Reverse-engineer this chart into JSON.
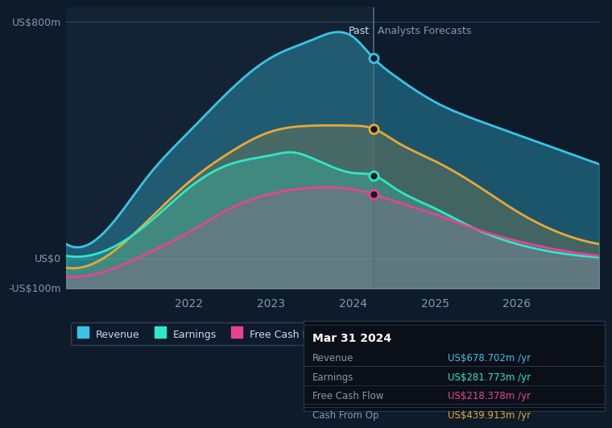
{
  "bg_color": "#0d1b2a",
  "plot_bg": "#0d1b2a",
  "title": "Mar 31 2024",
  "tooltip_title": "Mar 31 2024",
  "tooltip_items": [
    {
      "label": "Revenue",
      "value": "US$678.702m /yr",
      "color": "#38c4e8"
    },
    {
      "label": "Earnings",
      "value": "US$281.773m /yr",
      "color": "#2de8c8"
    },
    {
      "label": "Free Cash Flow",
      "value": "US$218.378m /yr",
      "color": "#e84393"
    },
    {
      "label": "Cash From Op",
      "value": "US$439.913m /yr",
      "color": "#e8a838"
    }
  ],
  "ylabel_800": "US$800m",
  "ylabel_0": "US$0",
  "ylabel_neg100": "-US$100m",
  "past_label": "Past",
  "forecast_label": "Analysts Forecasts",
  "divider_x": 2024.25,
  "legend_items": [
    {
      "label": "Revenue",
      "color": "#38c4e8"
    },
    {
      "label": "Earnings",
      "color": "#2de8c8"
    },
    {
      "label": "Free Cash Flow",
      "color": "#e84393"
    },
    {
      "label": "Cash From Op",
      "color": "#e8a838"
    }
  ],
  "x_ticks": [
    2022,
    2023,
    2024,
    2025,
    2026
  ],
  "ylim": [
    -100,
    850
  ],
  "revenue": {
    "color": "#38c4e8",
    "fill_alpha": 0.35,
    "x": [
      2020.5,
      2021.0,
      2021.5,
      2022.0,
      2022.5,
      2023.0,
      2023.5,
      2024.0,
      2024.25,
      2024.5,
      2025.0,
      2025.5,
      2026.0,
      2026.5,
      2027.0
    ],
    "y": [
      50,
      100,
      280,
      430,
      570,
      680,
      740,
      750,
      678,
      620,
      530,
      470,
      420,
      370,
      320
    ]
  },
  "earnings": {
    "color": "#2de8c8",
    "fill_alpha": 0.25,
    "x": [
      2020.5,
      2021.0,
      2021.5,
      2022.0,
      2022.5,
      2023.0,
      2023.25,
      2023.5,
      2023.75,
      2024.0,
      2024.25,
      2024.5,
      2025.0,
      2025.5,
      2026.0,
      2026.5,
      2027.0
    ],
    "y": [
      10,
      30,
      120,
      240,
      320,
      350,
      360,
      340,
      310,
      290,
      282,
      240,
      170,
      100,
      50,
      20,
      5
    ]
  },
  "free_cash_flow": {
    "color": "#e84393",
    "fill_alpha": 0.2,
    "x": [
      2020.5,
      2021.0,
      2021.5,
      2022.0,
      2022.5,
      2023.0,
      2023.5,
      2024.0,
      2024.25,
      2024.5,
      2025.0,
      2025.5,
      2026.0,
      2026.5,
      2027.0
    ],
    "y": [
      -60,
      -40,
      20,
      90,
      170,
      220,
      240,
      235,
      218,
      195,
      150,
      100,
      60,
      30,
      10
    ]
  },
  "cash_from_op": {
    "color": "#e8a838",
    "fill_alpha": 0.2,
    "x": [
      2020.5,
      2021.0,
      2021.5,
      2022.0,
      2022.5,
      2023.0,
      2023.5,
      2024.0,
      2024.25,
      2024.5,
      2025.0,
      2025.5,
      2026.0,
      2026.5,
      2027.0
    ],
    "y": [
      -30,
      10,
      130,
      260,
      360,
      430,
      450,
      450,
      440,
      400,
      330,
      250,
      160,
      90,
      50
    ]
  },
  "dot_x": 2024.25,
  "dot_revenue_y": 678,
  "dot_earnings_y": 282,
  "dot_fcf_y": 218,
  "dot_cfo_y": 440
}
